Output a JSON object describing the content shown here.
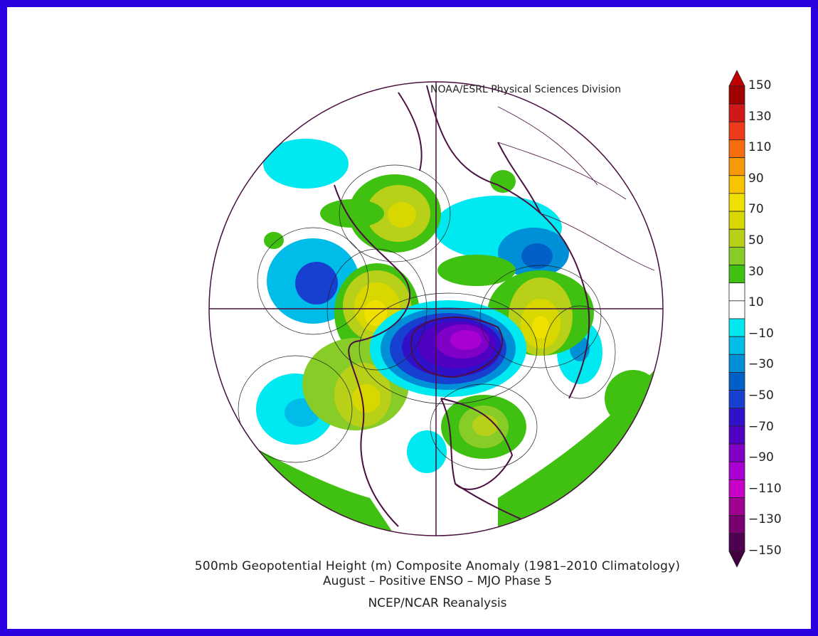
{
  "header": {
    "credit": "NOAA/ESRL Physical Sciences Division"
  },
  "footer": {
    "title_line1": "500mb Geopotential Height (m) Composite Anomaly (1981–2010 Climatology)",
    "title_line2": "August – Positive ENSO – MJO Phase 5",
    "source": "NCEP/NCAR Reanalysis"
  },
  "colorbar": {
    "labels": [
      "150",
      "130",
      "110",
      "90",
      "70",
      "50",
      "30",
      "10",
      "−10",
      "−30",
      "−50",
      "−70",
      "−90",
      "−110",
      "−130",
      "−150"
    ],
    "colors": [
      "#a00000",
      "#d01818",
      "#ec3a1a",
      "#f86c10",
      "#f89a08",
      "#f8c400",
      "#f0e000",
      "#d8d800",
      "#b8d018",
      "#88cc28",
      "#40c010",
      "#ffffff",
      "#ffffff",
      "#00e8f0",
      "#00bce8",
      "#0090d8",
      "#0060c8",
      "#1840d0",
      "#3010c8",
      "#5000c0",
      "#8000c8",
      "#a800d0",
      "#c800c8",
      "#a00090",
      "#780070",
      "#500050"
    ],
    "arrow_top": "#c00000",
    "arrow_bottom": "#400040"
  },
  "map": {
    "projection": "north-polar-stereographic",
    "background": "#ffffff",
    "coast_color": "#4a1040"
  }
}
